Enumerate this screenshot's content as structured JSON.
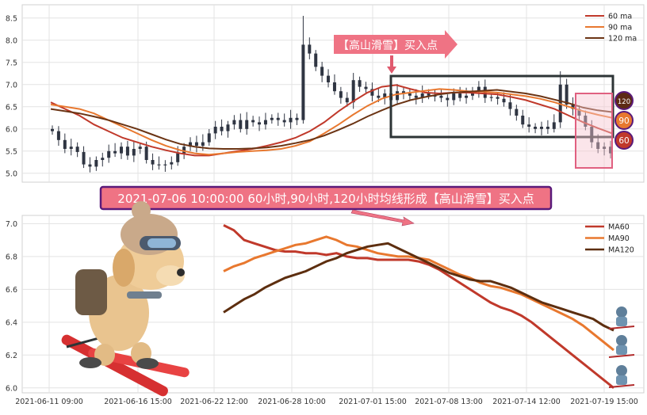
{
  "chart_data": [
    {
      "type": "candlestick",
      "title": "",
      "xlabel": "",
      "ylabel": "",
      "ylim": [
        4.8,
        8.8
      ],
      "y_ticks": [
        "5.0",
        "5.5",
        "6.0",
        "6.5",
        "7.0",
        "7.5",
        "8.0",
        "8.5"
      ],
      "grid": true,
      "legend_position": "top-right",
      "series": [
        {
          "name": "60 ma",
          "color": "#c0392b",
          "values": [
            6.6,
            6.45,
            6.3,
            6.1,
            5.95,
            5.8,
            5.7,
            5.6,
            5.52,
            5.45,
            5.4,
            5.4,
            5.45,
            5.5,
            5.55,
            5.62,
            5.7,
            5.8,
            5.95,
            6.15,
            6.4,
            6.62,
            6.82,
            6.95,
            6.99,
            6.9,
            6.82,
            6.8,
            6.82,
            6.82,
            6.8,
            6.78,
            6.72,
            6.65,
            6.55,
            6.45,
            6.3,
            6.15,
            6.02,
            5.9
          ]
        },
        {
          "name": "90 ma",
          "color": "#e8782f",
          "values": [
            6.55,
            6.5,
            6.45,
            6.35,
            6.2,
            6.05,
            5.9,
            5.75,
            5.62,
            5.52,
            5.45,
            5.42,
            5.45,
            5.48,
            5.5,
            5.52,
            5.55,
            5.62,
            5.72,
            5.9,
            6.1,
            6.32,
            6.52,
            6.68,
            6.78,
            6.82,
            6.86,
            6.9,
            6.88,
            6.85,
            6.84,
            6.82,
            6.78,
            6.74,
            6.68,
            6.6,
            6.5,
            6.4,
            6.32,
            6.25
          ]
        },
        {
          "name": "120 ma",
          "color": "#6b3414",
          "values": [
            6.45,
            6.4,
            6.35,
            6.28,
            6.2,
            6.1,
            6.0,
            5.88,
            5.76,
            5.66,
            5.6,
            5.56,
            5.55,
            5.55,
            5.56,
            5.58,
            5.62,
            5.68,
            5.75,
            5.85,
            5.98,
            6.12,
            6.28,
            6.42,
            6.55,
            6.65,
            6.72,
            6.78,
            6.82,
            6.84,
            6.86,
            6.88,
            6.84,
            6.8,
            6.74,
            6.66,
            6.58,
            6.48,
            6.42,
            6.38
          ]
        }
      ],
      "candles": {
        "up_color": "#2f3542",
        "down_color": "#2f3542",
        "close": [
          5.95,
          5.75,
          5.55,
          5.6,
          5.48,
          5.2,
          5.15,
          5.3,
          5.35,
          5.5,
          5.45,
          5.6,
          5.4,
          5.55,
          5.6,
          5.3,
          5.2,
          5.18,
          5.2,
          5.25,
          5.45,
          5.6,
          5.7,
          5.62,
          5.7,
          5.9,
          6.05,
          5.95,
          6.1,
          6.2,
          6.0,
          6.2,
          6.15,
          6.1,
          6.2,
          6.25,
          6.2,
          6.15,
          6.25,
          6.2,
          7.9,
          7.7,
          7.4,
          7.2,
          7.05,
          6.85,
          6.7,
          6.6,
          7.1,
          6.95,
          6.9,
          6.75,
          6.7,
          6.8,
          6.65,
          6.85,
          6.8,
          6.75,
          6.7,
          6.8,
          6.75,
          6.75,
          6.7,
          6.65,
          6.8,
          6.7,
          6.75,
          6.85,
          6.95,
          6.7,
          6.72,
          6.68,
          6.6,
          6.45,
          6.3,
          6.1,
          6.05,
          6.0,
          6.05,
          6.0,
          6.15,
          7.0,
          6.55,
          6.45,
          6.3,
          6.05,
          5.7,
          5.55,
          5.6,
          5.45
        ]
      }
    },
    {
      "type": "line",
      "title": "",
      "xlabel": "",
      "ylabel": "",
      "ylim": [
        5.97,
        7.05
      ],
      "y_ticks": [
        "6.0",
        "6.2",
        "6.4",
        "6.6",
        "6.8",
        "7.0"
      ],
      "x_ticks": [
        "2021-06-11 09:00",
        "2021-06-16 15:00",
        "2021-06-22 12:00",
        "2021-06-28 10:00",
        "2021-07-01 15:00",
        "2021-07-08 13:00",
        "2021-07-14 12:00",
        "2021-07-19 15:00"
      ],
      "grid": true,
      "legend_position": "top-right",
      "series": [
        {
          "name": "MA60",
          "color": "#c0392b",
          "values": [
            6.99,
            6.96,
            6.9,
            6.88,
            6.86,
            6.84,
            6.83,
            6.83,
            6.82,
            6.82,
            6.81,
            6.82,
            6.8,
            6.79,
            6.79,
            6.78,
            6.78,
            6.78,
            6.78,
            6.77,
            6.75,
            6.72,
            6.68,
            6.64,
            6.6,
            6.56,
            6.52,
            6.49,
            6.47,
            6.44,
            6.4,
            6.35,
            6.3,
            6.25,
            6.2,
            6.15,
            6.1,
            6.05,
            6.0
          ]
        },
        {
          "name": "MA90",
          "color": "#e8782f",
          "values": [
            6.71,
            6.74,
            6.76,
            6.79,
            6.81,
            6.83,
            6.85,
            6.87,
            6.88,
            6.9,
            6.92,
            6.9,
            6.87,
            6.86,
            6.84,
            6.82,
            6.81,
            6.8,
            6.8,
            6.79,
            6.78,
            6.75,
            6.72,
            6.69,
            6.67,
            6.64,
            6.62,
            6.61,
            6.59,
            6.57,
            6.54,
            6.51,
            6.48,
            6.45,
            6.42,
            6.38,
            6.33,
            6.28,
            6.23
          ]
        },
        {
          "name": "MA120",
          "color": "#5d2e0f",
          "values": [
            6.46,
            6.5,
            6.54,
            6.57,
            6.61,
            6.64,
            6.67,
            6.69,
            6.71,
            6.74,
            6.77,
            6.79,
            6.82,
            6.84,
            6.86,
            6.87,
            6.88,
            6.85,
            6.82,
            6.79,
            6.76,
            6.73,
            6.7,
            6.68,
            6.66,
            6.65,
            6.65,
            6.63,
            6.61,
            6.58,
            6.55,
            6.52,
            6.5,
            6.48,
            6.46,
            6.44,
            6.42,
            6.38,
            6.35
          ]
        }
      ]
    }
  ],
  "annotations": {
    "top_arrow_label": "【高山滑雪】买入点",
    "banner": "2021-07-06 10:00:00 60小时,90小时,120小时均线形成【高山滑雪】买入点",
    "badges": [
      {
        "label": "120",
        "color": "#5d2a14"
      },
      {
        "label": "90",
        "color": "#e8782f"
      },
      {
        "label": "60",
        "color": "#c0392b"
      }
    ]
  }
}
